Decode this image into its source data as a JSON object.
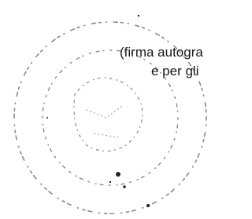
{
  "document": {
    "lines": [
      "(firma autogra",
      "e per gli"
    ]
  }
}
